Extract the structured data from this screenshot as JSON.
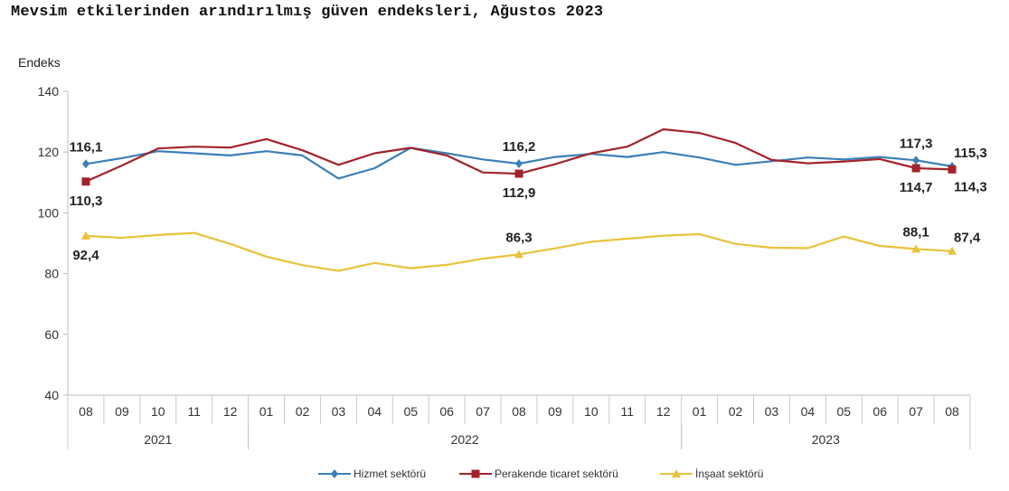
{
  "title": "Mevsim etkilerinden arındırılmış güven endeksleri, Ağustos 2023",
  "chart_data": {
    "type": "line",
    "title": "Mevsim etkilerinden arındırılmış güven endeksleri, Ağustos 2023",
    "ylabel": "Endeks",
    "xlabel": "",
    "ylim": [
      40,
      140
    ],
    "yticks": [
      "40",
      "60",
      "80",
      "100",
      "120",
      "140"
    ],
    "ytick_values": [
      40,
      60,
      80,
      100,
      120,
      140
    ],
    "grid": false,
    "legend_position": "bottom",
    "categories": [
      "08",
      "09",
      "10",
      "11",
      "12",
      "01",
      "02",
      "03",
      "04",
      "05",
      "06",
      "07",
      "08",
      "09",
      "10",
      "11",
      "12",
      "01",
      "02",
      "03",
      "04",
      "05",
      "06",
      "07",
      "08"
    ],
    "year_groups": [
      {
        "label": "2021",
        "start": 0,
        "end": 4
      },
      {
        "label": "2022",
        "start": 5,
        "end": 16
      },
      {
        "label": "2023",
        "start": 17,
        "end": 24
      }
    ],
    "series": [
      {
        "name": "Hizmet sektörü",
        "color": "#3b7fb8",
        "marker": "diamond",
        "values": [
          116.1,
          118.0,
          120.3,
          119.6,
          118.9,
          120.3,
          118.9,
          111.3,
          114.7,
          121.4,
          119.6,
          117.6,
          116.2,
          118.4,
          119.4,
          118.4,
          120.0,
          118.2,
          115.8,
          117.0,
          118.2,
          117.6,
          118.4,
          117.3,
          115.3
        ],
        "labels": [
          {
            "index": 0,
            "text": "116,1",
            "pos": "above"
          },
          {
            "index": 12,
            "text": "116,2",
            "pos": "above"
          },
          {
            "index": 23,
            "text": "117,3",
            "pos": "above"
          },
          {
            "index": 24,
            "text": "115,3",
            "pos": "above-right"
          }
        ]
      },
      {
        "name": "Perakende ticaret sektörü",
        "color": "#a3232b",
        "marker": "square",
        "values": [
          110.3,
          115.6,
          121.2,
          121.8,
          121.5,
          124.3,
          120.6,
          115.8,
          119.6,
          121.4,
          118.9,
          113.3,
          112.9,
          116.0,
          119.6,
          121.8,
          127.5,
          126.3,
          123.0,
          117.4,
          116.3,
          116.9,
          117.7,
          114.7,
          114.3
        ],
        "labels": [
          {
            "index": 0,
            "text": "110,3",
            "pos": "below"
          },
          {
            "index": 12,
            "text": "112,9",
            "pos": "below"
          },
          {
            "index": 23,
            "text": "114,7",
            "pos": "below"
          },
          {
            "index": 24,
            "text": "114,3",
            "pos": "below-right"
          }
        ]
      },
      {
        "name": "İnşaat sektörü",
        "color": "#e8c23a",
        "marker": "triangle",
        "values": [
          92.4,
          91.8,
          92.7,
          93.4,
          89.8,
          85.6,
          82.8,
          80.9,
          83.5,
          81.8,
          82.9,
          84.9,
          86.3,
          88.3,
          90.5,
          91.5,
          92.5,
          93.0,
          89.8,
          88.5,
          88.4,
          92.2,
          89.1,
          88.1,
          87.4
        ],
        "labels": [
          {
            "index": 0,
            "text": "92,4",
            "pos": "below"
          },
          {
            "index": 12,
            "text": "86,3",
            "pos": "above"
          },
          {
            "index": 23,
            "text": "88,1",
            "pos": "above"
          },
          {
            "index": 24,
            "text": "87,4",
            "pos": "above-right"
          }
        ]
      }
    ]
  }
}
